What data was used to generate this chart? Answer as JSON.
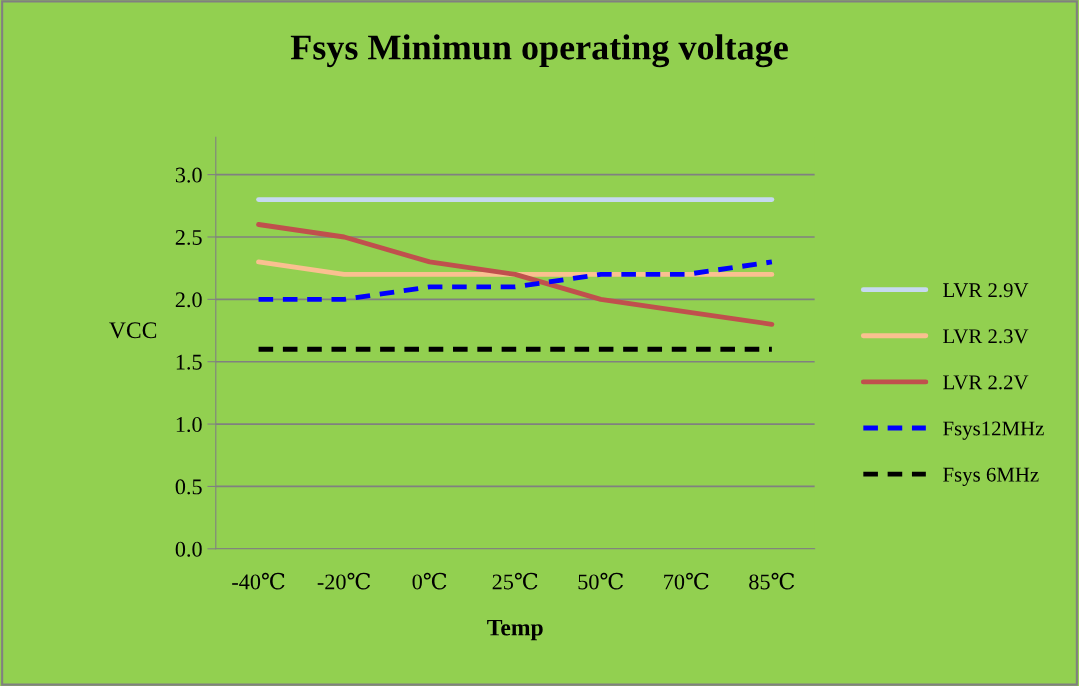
{
  "chart_data": {
    "type": "line",
    "title": "Fsys Minimun operating voltage",
    "xlabel": "Temp",
    "ylabel": "VCC",
    "categories": [
      "-40℃",
      "-20℃",
      "0℃",
      "25℃",
      "50℃",
      "70℃",
      "85℃"
    ],
    "series": [
      {
        "name": "LVR 2.9V",
        "color": "#c6d9f1",
        "values": [
          2.8,
          2.8,
          2.8,
          2.8,
          2.8,
          2.8,
          2.8
        ],
        "line_style": "solid"
      },
      {
        "name": "LVR 2.3V",
        "color": "#fac090",
        "values": [
          2.3,
          2.2,
          2.2,
          2.2,
          2.2,
          2.2,
          2.2
        ],
        "line_style": "solid"
      },
      {
        "name": "LVR 2.2V",
        "color": "#c0504d",
        "values": [
          2.6,
          2.5,
          2.3,
          2.2,
          2.0,
          1.9,
          1.8
        ],
        "line_style": "solid"
      },
      {
        "name": "Fsys12MHz",
        "color": "#0000ff",
        "values": [
          2.0,
          2.0,
          2.1,
          2.1,
          2.2,
          2.2,
          2.3
        ],
        "line_style": "dashed"
      },
      {
        "name": "Fsys 6MHz",
        "color": "#000000",
        "values": [
          1.6,
          1.6,
          1.6,
          1.6,
          1.6,
          1.6,
          1.6
        ],
        "line_style": "dashed"
      }
    ],
    "ylim": [
      0,
      3.3
    ],
    "yticks": [
      {
        "value": 0,
        "label": "0.0"
      },
      {
        "value": 0.5,
        "label": "0.5"
      },
      {
        "value": 1,
        "label": "1.0"
      },
      {
        "value": 1.5,
        "label": "1.5"
      },
      {
        "value": 2,
        "label": "2.0"
      },
      {
        "value": 2.5,
        "label": "2.5"
      },
      {
        "value": 3,
        "label": "3.0"
      }
    ],
    "grid": "y",
    "legend": "right",
    "marker": "none"
  }
}
